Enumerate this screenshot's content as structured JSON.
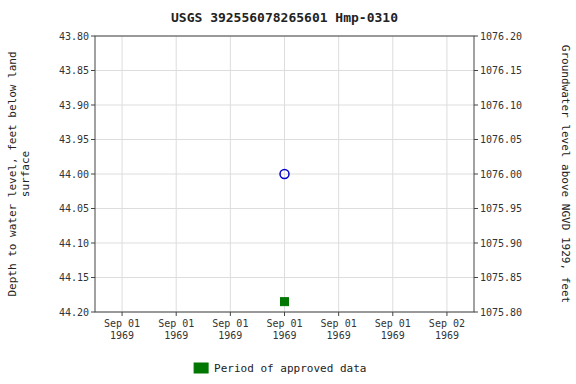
{
  "chart_data": {
    "type": "scatter",
    "title": "USGS 392556078265601  Hmp-0310",
    "y_label": "Depth to water level, feet below land\nsurface",
    "y2_label": "Groundwater level above NGVD 1929, feet",
    "categories": [
      "Sep 01\n1969",
      "Sep 01\n1969",
      "Sep 01\n1969",
      "Sep 01\n1969",
      "Sep 01\n1969",
      "Sep 01\n1969",
      "Sep 02\n1969"
    ],
    "series": [
      {
        "color": "#0000cc",
        "marker": "circle",
        "values": [
          null,
          null,
          null,
          44.0,
          null,
          null,
          null
        ]
      },
      {
        "name": "Period of approved data",
        "color": "#007700",
        "marker": "square",
        "values": [
          null,
          null,
          null,
          44.185,
          null,
          null,
          null
        ]
      }
    ],
    "ylim": [
      44.2,
      43.8
    ],
    "yticks": [
      {
        "value": 43.8,
        "label": "43.80"
      },
      {
        "value": 43.85,
        "label": "43.85"
      },
      {
        "value": 43.9,
        "label": "43.90"
      },
      {
        "value": 43.95,
        "label": "43.95"
      },
      {
        "value": 44.0,
        "label": "44.00"
      },
      {
        "value": 44.05,
        "label": "44.05"
      },
      {
        "value": 44.1,
        "label": "44.10"
      },
      {
        "value": 44.15,
        "label": "44.15"
      },
      {
        "value": 44.2,
        "label": "44.20"
      }
    ],
    "y2lim": [
      1075.8,
      1076.2
    ],
    "y2ticks": [
      {
        "value": 1076.2,
        "label": "1076.20"
      },
      {
        "value": 1076.15,
        "label": "1076.15"
      },
      {
        "value": 1076.1,
        "label": "1076.10"
      },
      {
        "value": 1076.05,
        "label": "1076.05"
      },
      {
        "value": 1076.0,
        "label": "1076.00"
      },
      {
        "value": 1075.95,
        "label": "1075.95"
      },
      {
        "value": 1075.9,
        "label": "1075.90"
      },
      {
        "value": 1075.85,
        "label": "1075.85"
      },
      {
        "value": 1075.8,
        "label": "1075.80"
      }
    ],
    "grid": true,
    "legend": "bottom"
  }
}
